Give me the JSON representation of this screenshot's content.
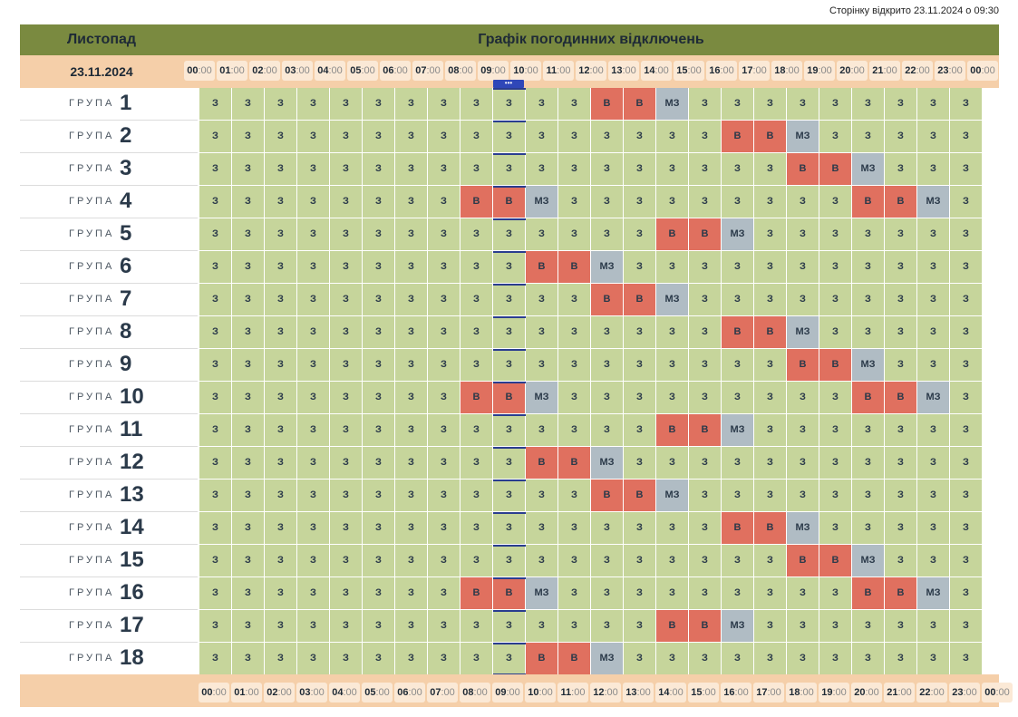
{
  "opened_text": "Сторінку відкрито 23.11.2024 о 09:30",
  "header": {
    "month": "Листопад",
    "title": "Графік погодинних відключень"
  },
  "date": "23.11.2024",
  "hour_labels": [
    {
      "h": "00",
      "m": ":00"
    },
    {
      "h": "01",
      "m": ":00"
    },
    {
      "h": "02",
      "m": ":00"
    },
    {
      "h": "03",
      "m": ":00"
    },
    {
      "h": "04",
      "m": ":00"
    },
    {
      "h": "05",
      "m": ":00"
    },
    {
      "h": "06",
      "m": ":00"
    },
    {
      "h": "07",
      "m": ":00"
    },
    {
      "h": "08",
      "m": ":00"
    },
    {
      "h": "09",
      "m": ":00"
    },
    {
      "h": "10",
      "m": ":00"
    },
    {
      "h": "11",
      "m": ":00"
    },
    {
      "h": "12",
      "m": ":00"
    },
    {
      "h": "13",
      "m": ":00"
    },
    {
      "h": "14",
      "m": ":00"
    },
    {
      "h": "15",
      "m": ":00"
    },
    {
      "h": "16",
      "m": ":00"
    },
    {
      "h": "17",
      "m": ":00"
    },
    {
      "h": "18",
      "m": ":00"
    },
    {
      "h": "19",
      "m": ":00"
    },
    {
      "h": "20",
      "m": ":00"
    },
    {
      "h": "21",
      "m": ":00"
    },
    {
      "h": "22",
      "m": ":00"
    },
    {
      "h": "23",
      "m": ":00"
    },
    {
      "h": "00",
      "m": ":00"
    }
  ],
  "group_word": "ГРУПА",
  "now_badge": "•••",
  "current_hour_index": 9,
  "state_labels": {
    "z": "З",
    "v": "В",
    "mz": "МЗ"
  },
  "groups": [
    {
      "number": "1",
      "hours": [
        "z",
        "z",
        "z",
        "z",
        "z",
        "z",
        "z",
        "z",
        "z",
        "z",
        "z",
        "z",
        "v",
        "v",
        "mz",
        "z",
        "z",
        "z",
        "z",
        "z",
        "z",
        "z",
        "z",
        "z"
      ]
    },
    {
      "number": "2",
      "hours": [
        "z",
        "z",
        "z",
        "z",
        "z",
        "z",
        "z",
        "z",
        "z",
        "z",
        "z",
        "z",
        "z",
        "z",
        "z",
        "z",
        "v",
        "v",
        "mz",
        "z",
        "z",
        "z",
        "z",
        "z"
      ]
    },
    {
      "number": "3",
      "hours": [
        "z",
        "z",
        "z",
        "z",
        "z",
        "z",
        "z",
        "z",
        "z",
        "z",
        "z",
        "z",
        "z",
        "z",
        "z",
        "z",
        "z",
        "z",
        "v",
        "v",
        "mz",
        "z",
        "z",
        "z"
      ]
    },
    {
      "number": "4",
      "hours": [
        "z",
        "z",
        "z",
        "z",
        "z",
        "z",
        "z",
        "z",
        "v",
        "v",
        "mz",
        "z",
        "z",
        "z",
        "z",
        "z",
        "z",
        "z",
        "z",
        "z",
        "v",
        "v",
        "mz",
        "z"
      ]
    },
    {
      "number": "5",
      "hours": [
        "z",
        "z",
        "z",
        "z",
        "z",
        "z",
        "z",
        "z",
        "z",
        "z",
        "z",
        "z",
        "z",
        "z",
        "v",
        "v",
        "mz",
        "z",
        "z",
        "z",
        "z",
        "z",
        "z",
        "z"
      ]
    },
    {
      "number": "6",
      "hours": [
        "z",
        "z",
        "z",
        "z",
        "z",
        "z",
        "z",
        "z",
        "z",
        "z",
        "v",
        "v",
        "mz",
        "z",
        "z",
        "z",
        "z",
        "z",
        "z",
        "z",
        "z",
        "z",
        "z",
        "z"
      ]
    },
    {
      "number": "7",
      "hours": [
        "z",
        "z",
        "z",
        "z",
        "z",
        "z",
        "z",
        "z",
        "z",
        "z",
        "z",
        "z",
        "v",
        "v",
        "mz",
        "z",
        "z",
        "z",
        "z",
        "z",
        "z",
        "z",
        "z",
        "z"
      ]
    },
    {
      "number": "8",
      "hours": [
        "z",
        "z",
        "z",
        "z",
        "z",
        "z",
        "z",
        "z",
        "z",
        "z",
        "z",
        "z",
        "z",
        "z",
        "z",
        "z",
        "v",
        "v",
        "mz",
        "z",
        "z",
        "z",
        "z",
        "z"
      ]
    },
    {
      "number": "9",
      "hours": [
        "z",
        "z",
        "z",
        "z",
        "z",
        "z",
        "z",
        "z",
        "z",
        "z",
        "z",
        "z",
        "z",
        "z",
        "z",
        "z",
        "z",
        "z",
        "v",
        "v",
        "mz",
        "z",
        "z",
        "z"
      ]
    },
    {
      "number": "10",
      "hours": [
        "z",
        "z",
        "z",
        "z",
        "z",
        "z",
        "z",
        "z",
        "v",
        "v",
        "mz",
        "z",
        "z",
        "z",
        "z",
        "z",
        "z",
        "z",
        "z",
        "z",
        "v",
        "v",
        "mz",
        "z"
      ]
    },
    {
      "number": "11",
      "hours": [
        "z",
        "z",
        "z",
        "z",
        "z",
        "z",
        "z",
        "z",
        "z",
        "z",
        "z",
        "z",
        "z",
        "z",
        "v",
        "v",
        "mz",
        "z",
        "z",
        "z",
        "z",
        "z",
        "z",
        "z"
      ]
    },
    {
      "number": "12",
      "hours": [
        "z",
        "z",
        "z",
        "z",
        "z",
        "z",
        "z",
        "z",
        "z",
        "z",
        "v",
        "v",
        "mz",
        "z",
        "z",
        "z",
        "z",
        "z",
        "z",
        "z",
        "z",
        "z",
        "z",
        "z"
      ]
    },
    {
      "number": "13",
      "hours": [
        "z",
        "z",
        "z",
        "z",
        "z",
        "z",
        "z",
        "z",
        "z",
        "z",
        "z",
        "z",
        "v",
        "v",
        "mz",
        "z",
        "z",
        "z",
        "z",
        "z",
        "z",
        "z",
        "z",
        "z"
      ]
    },
    {
      "number": "14",
      "hours": [
        "z",
        "z",
        "z",
        "z",
        "z",
        "z",
        "z",
        "z",
        "z",
        "z",
        "z",
        "z",
        "z",
        "z",
        "z",
        "z",
        "v",
        "v",
        "mz",
        "z",
        "z",
        "z",
        "z",
        "z"
      ]
    },
    {
      "number": "15",
      "hours": [
        "z",
        "z",
        "z",
        "z",
        "z",
        "z",
        "z",
        "z",
        "z",
        "z",
        "z",
        "z",
        "z",
        "z",
        "z",
        "z",
        "z",
        "z",
        "v",
        "v",
        "mz",
        "z",
        "z",
        "z"
      ]
    },
    {
      "number": "16",
      "hours": [
        "z",
        "z",
        "z",
        "z",
        "z",
        "z",
        "z",
        "z",
        "v",
        "v",
        "mz",
        "z",
        "z",
        "z",
        "z",
        "z",
        "z",
        "z",
        "z",
        "z",
        "v",
        "v",
        "mz",
        "z"
      ]
    },
    {
      "number": "17",
      "hours": [
        "z",
        "z",
        "z",
        "z",
        "z",
        "z",
        "z",
        "z",
        "z",
        "z",
        "z",
        "z",
        "z",
        "z",
        "v",
        "v",
        "mz",
        "z",
        "z",
        "z",
        "z",
        "z",
        "z",
        "z"
      ]
    },
    {
      "number": "18",
      "hours": [
        "z",
        "z",
        "z",
        "z",
        "z",
        "z",
        "z",
        "z",
        "z",
        "z",
        "v",
        "v",
        "mz",
        "z",
        "z",
        "z",
        "z",
        "z",
        "z",
        "z",
        "z",
        "z",
        "z",
        "z"
      ]
    }
  ]
}
